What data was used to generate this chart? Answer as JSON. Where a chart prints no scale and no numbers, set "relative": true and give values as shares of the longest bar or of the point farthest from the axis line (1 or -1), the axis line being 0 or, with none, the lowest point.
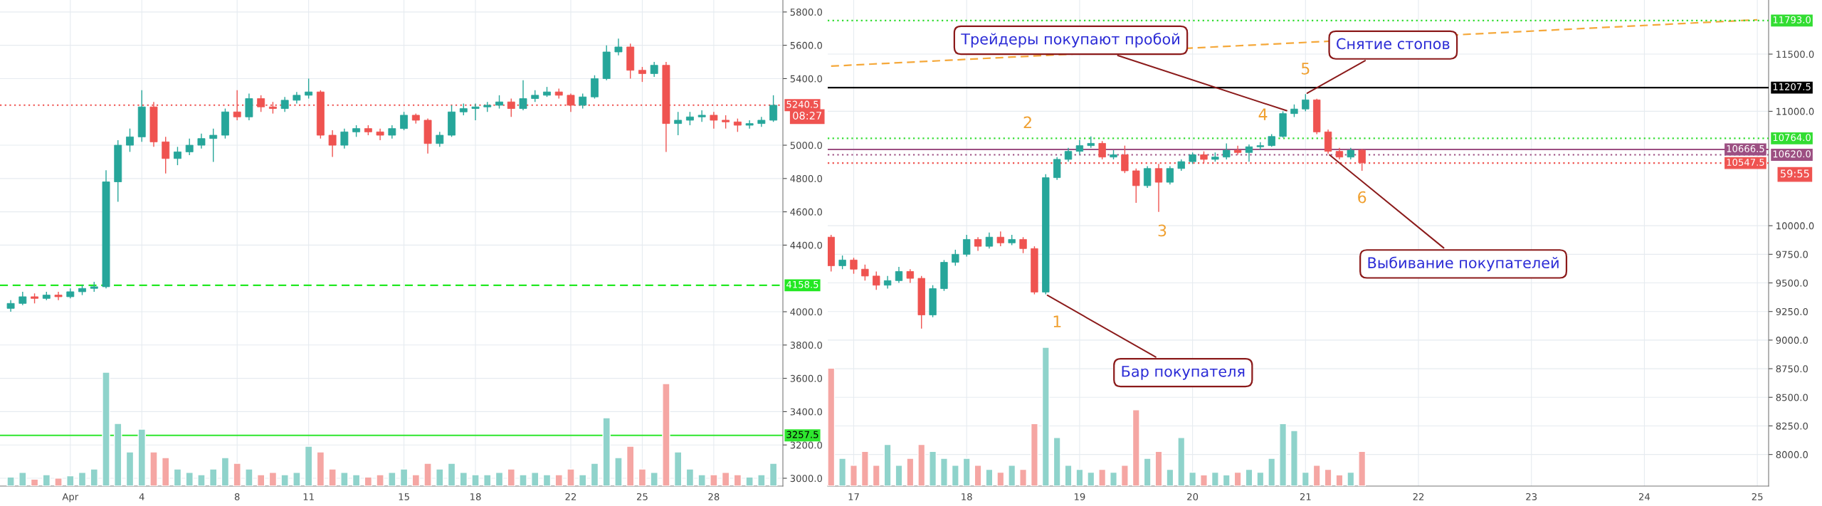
{
  "chart_data": [
    {
      "type": "candlestick",
      "x": [
        -1.5,
        -1,
        -0.5,
        0,
        0.5,
        1,
        1.5,
        2,
        2.5,
        3,
        3.5,
        4,
        4.5,
        5,
        5.5,
        6,
        6.5,
        7,
        7.5,
        8,
        8.5,
        9,
        9.5,
        10,
        10.5,
        11,
        11.5,
        12,
        12.5,
        13,
        13.5,
        14,
        14.5,
        15,
        15.5,
        16,
        16.5,
        17,
        17.5,
        18,
        18.5,
        19,
        19.5,
        20,
        20.5,
        21,
        21.5,
        22,
        22.5,
        23,
        23.5,
        24,
        24.5,
        25,
        25.5,
        26,
        26.5,
        27,
        27.5,
        28,
        28.5,
        29,
        29.5,
        30,
        30.5
      ],
      "ohlc": [
        [
          4020,
          4070,
          4000,
          4050
        ],
        [
          4050,
          4120,
          4040,
          4090
        ],
        [
          4090,
          4110,
          4050,
          4080
        ],
        [
          4080,
          4120,
          4070,
          4100
        ],
        [
          4100,
          4120,
          4070,
          4090
        ],
        [
          4090,
          4140,
          4080,
          4120
        ],
        [
          4120,
          4160,
          4100,
          4140
        ],
        [
          4140,
          4180,
          4120,
          4150
        ],
        [
          4150,
          4850,
          4140,
          4780
        ],
        [
          4780,
          5030,
          4660,
          5000
        ],
        [
          5000,
          5100,
          4960,
          5050
        ],
        [
          5050,
          5330,
          5020,
          5230
        ],
        [
          5230,
          5260,
          4990,
          5020
        ],
        [
          5020,
          5050,
          4830,
          4920
        ],
        [
          4920,
          4990,
          4880,
          4960
        ],
        [
          4960,
          5040,
          4940,
          5000
        ],
        [
          5000,
          5070,
          4980,
          5040
        ],
        [
          5040,
          5100,
          4900,
          5060
        ],
        [
          5060,
          5220,
          5040,
          5200
        ],
        [
          5200,
          5330,
          5150,
          5170
        ],
        [
          5170,
          5310,
          5150,
          5280
        ],
        [
          5280,
          5300,
          5200,
          5230
        ],
        [
          5230,
          5260,
          5190,
          5220
        ],
        [
          5220,
          5290,
          5200,
          5270
        ],
        [
          5270,
          5320,
          5250,
          5300
        ],
        [
          5300,
          5400,
          5280,
          5320
        ],
        [
          5320,
          5330,
          5040,
          5060
        ],
        [
          5060,
          5090,
          4930,
          5000
        ],
        [
          5000,
          5100,
          4980,
          5080
        ],
        [
          5080,
          5120,
          5050,
          5100
        ],
        [
          5100,
          5120,
          5060,
          5080
        ],
        [
          5080,
          5100,
          5030,
          5060
        ],
        [
          5060,
          5120,
          5040,
          5100
        ],
        [
          5100,
          5200,
          5090,
          5180
        ],
        [
          5180,
          5190,
          5130,
          5150
        ],
        [
          5150,
          5160,
          4950,
          5010
        ],
        [
          5010,
          5080,
          4990,
          5060
        ],
        [
          5060,
          5240,
          5050,
          5200
        ],
        [
          5200,
          5250,
          5180,
          5220
        ],
        [
          5220,
          5250,
          5150,
          5230
        ],
        [
          5230,
          5260,
          5200,
          5240
        ],
        [
          5240,
          5300,
          5220,
          5260
        ],
        [
          5260,
          5280,
          5170,
          5220
        ],
        [
          5220,
          5390,
          5210,
          5280
        ],
        [
          5280,
          5330,
          5260,
          5300
        ],
        [
          5300,
          5350,
          5290,
          5320
        ],
        [
          5320,
          5340,
          5280,
          5300
        ],
        [
          5300,
          5310,
          5200,
          5240
        ],
        [
          5240,
          5310,
          5220,
          5290
        ],
        [
          5290,
          5420,
          5280,
          5400
        ],
        [
          5400,
          5600,
          5390,
          5560
        ],
        [
          5560,
          5640,
          5540,
          5590
        ],
        [
          5590,
          5610,
          5400,
          5450
        ],
        [
          5450,
          5470,
          5380,
          5430
        ],
        [
          5430,
          5500,
          5410,
          5480
        ],
        [
          5480,
          5500,
          4960,
          5130
        ],
        [
          5130,
          5200,
          5060,
          5150
        ],
        [
          5150,
          5200,
          5120,
          5170
        ],
        [
          5170,
          5210,
          5140,
          5180
        ],
        [
          5180,
          5200,
          5100,
          5150
        ],
        [
          5150,
          5180,
          5100,
          5140
        ],
        [
          5140,
          5160,
          5080,
          5120
        ],
        [
          5120,
          5150,
          5100,
          5130
        ],
        [
          5130,
          5170,
          5110,
          5150
        ],
        [
          5150,
          5300,
          5140,
          5240
        ]
      ],
      "xlim": [
        -1.95,
        30.9
      ],
      "ylim": [
        2953,
        5872
      ],
      "xticks": [
        {
          "value": 1,
          "label": "Apr"
        },
        4,
        8,
        11,
        15,
        18,
        22,
        25,
        28
      ],
      "yticks": [
        {
          "value": 3000,
          "label": "3000.0"
        },
        {
          "value": 3200,
          "label": "3200.0"
        },
        {
          "value": 3400,
          "label": "3400.0"
        },
        {
          "value": 3600,
          "label": "3600.0"
        },
        {
          "value": 3800,
          "label": "3800.0"
        },
        {
          "value": 4000,
          "label": "4000.0"
        },
        {
          "value": 4400,
          "label": "4400.0"
        },
        {
          "value": 4600,
          "label": "4600.0"
        },
        {
          "value": 4800,
          "label": "4800.0"
        },
        {
          "value": 5000,
          "label": "5000.0"
        },
        {
          "value": 5400,
          "label": "5400.0"
        },
        {
          "value": 5600,
          "label": "5600.0"
        },
        {
          "value": 5800,
          "label": "5800.0"
        }
      ],
      "grid": true,
      "ref_lines": [
        {
          "axis": "y",
          "value": 4158.5,
          "label": "4158.5",
          "color": "#22e822",
          "line_style": "dashed"
        },
        {
          "axis": "y",
          "value": 3257.5,
          "label": "3257.5",
          "color": "#2ee62e",
          "line_style": "solid"
        },
        {
          "axis": "y",
          "value": 5240.5,
          "label": "5240.5",
          "color": "#ef5350",
          "line_style": "dotted"
        }
      ],
      "annotations": [
        "08:27"
      ]
    },
    {
      "type": "bar",
      "relative": true,
      "x": [
        -1.5,
        -1,
        -0.5,
        0,
        0.5,
        1,
        1.5,
        2,
        2.5,
        3,
        3.5,
        4,
        4.5,
        5,
        5.5,
        6,
        6.5,
        7,
        7.5,
        8,
        8.5,
        9,
        9.5,
        10,
        10.5,
        11,
        11.5,
        12,
        12.5,
        13,
        13.5,
        14,
        14.5,
        15,
        15.5,
        16,
        16.5,
        17,
        17.5,
        18,
        18.5,
        19,
        19.5,
        20,
        20.5,
        21,
        21.5,
        22,
        22.5,
        23,
        23.5,
        24,
        24.5,
        25,
        25.5,
        26,
        26.5,
        27,
        27.5,
        28,
        28.5,
        29,
        29.5,
        30,
        30.5
      ],
      "xlim": [
        -1.95,
        30.9
      ],
      "values": [
        0.08,
        0.12,
        0.06,
        0.1,
        0.07,
        0.09,
        0.12,
        0.15,
        1.0,
        0.55,
        0.3,
        0.5,
        0.3,
        0.25,
        0.15,
        0.12,
        0.1,
        0.15,
        0.25,
        0.2,
        0.15,
        0.1,
        0.12,
        0.1,
        0.12,
        0.35,
        0.3,
        0.15,
        0.12,
        0.1,
        0.08,
        0.1,
        0.12,
        0.15,
        0.1,
        0.2,
        0.15,
        0.2,
        0.12,
        0.1,
        0.1,
        0.12,
        0.15,
        0.1,
        0.12,
        0.1,
        0.1,
        0.15,
        0.1,
        0.2,
        0.6,
        0.25,
        0.35,
        0.15,
        0.12,
        0.9,
        0.3,
        0.15,
        0.1,
        0.1,
        0.12,
        0.1,
        0.08,
        0.1,
        0.2
      ],
      "colors": [
        "#8fd3cb",
        "#8fd3cb",
        "#f5a6a3",
        "#8fd3cb",
        "#f5a6a3",
        "#8fd3cb",
        "#8fd3cb",
        "#8fd3cb",
        "#8fd3cb",
        "#8fd3cb",
        "#8fd3cb",
        "#8fd3cb",
        "#f5a6a3",
        "#f5a6a3",
        "#8fd3cb",
        "#8fd3cb",
        "#8fd3cb",
        "#8fd3cb",
        "#8fd3cb",
        "#f5a6a3",
        "#8fd3cb",
        "#f5a6a3",
        "#f5a6a3",
        "#8fd3cb",
        "#8fd3cb",
        "#8fd3cb",
        "#f5a6a3",
        "#f5a6a3",
        "#8fd3cb",
        "#8fd3cb",
        "#f5a6a3",
        "#f5a6a3",
        "#8fd3cb",
        "#8fd3cb",
        "#f5a6a3",
        "#f5a6a3",
        "#8fd3cb",
        "#8fd3cb",
        "#8fd3cb",
        "#8fd3cb",
        "#8fd3cb",
        "#8fd3cb",
        "#f5a6a3",
        "#8fd3cb",
        "#8fd3cb",
        "#8fd3cb",
        "#f5a6a3",
        "#f5a6a3",
        "#8fd3cb",
        "#8fd3cb",
        "#8fd3cb",
        "#8fd3cb",
        "#f5a6a3",
        "#f5a6a3",
        "#8fd3cb",
        "#f5a6a3",
        "#8fd3cb",
        "#8fd3cb",
        "#8fd3cb",
        "#f5a6a3",
        "#f5a6a3",
        "#f5a6a3",
        "#8fd3cb",
        "#8fd3cb",
        "#8fd3cb"
      ]
    },
    {
      "type": "candlestick",
      "x": [
        16.8,
        16.9,
        17.0,
        17.1,
        17.2,
        17.3,
        17.4,
        17.5,
        17.6,
        17.7,
        17.8,
        17.9,
        18.0,
        18.1,
        18.2,
        18.3,
        18.4,
        18.5,
        18.6,
        18.7,
        18.8,
        18.9,
        19.0,
        19.1,
        19.2,
        19.3,
        19.4,
        19.5,
        19.6,
        19.7,
        19.8,
        19.9,
        20.0,
        20.1,
        20.2,
        20.3,
        20.4,
        20.5,
        20.6,
        20.7,
        20.8,
        20.9,
        21.0,
        21.1,
        21.2,
        21.3,
        21.4,
        21.5
      ],
      "ohlc": [
        [
          9900,
          9920,
          9600,
          9650
        ],
        [
          9650,
          9740,
          9620,
          9700
        ],
        [
          9700,
          9720,
          9580,
          9620
        ],
        [
          9620,
          9660,
          9520,
          9560
        ],
        [
          9560,
          9600,
          9440,
          9480
        ],
        [
          9480,
          9560,
          9450,
          9520
        ],
        [
          9520,
          9640,
          9500,
          9600
        ],
        [
          9600,
          9620,
          9500,
          9540
        ],
        [
          9540,
          9560,
          9100,
          9220
        ],
        [
          9220,
          9480,
          9200,
          9450
        ],
        [
          9450,
          9700,
          9430,
          9680
        ],
        [
          9680,
          9790,
          9650,
          9750
        ],
        [
          9750,
          9920,
          9730,
          9880
        ],
        [
          9880,
          9900,
          9780,
          9820
        ],
        [
          9820,
          9940,
          9800,
          9900
        ],
        [
          9900,
          9950,
          9820,
          9850
        ],
        [
          9850,
          9920,
          9830,
          9880
        ],
        [
          9880,
          9900,
          9760,
          9800
        ],
        [
          9800,
          9820,
          9400,
          9420
        ],
        [
          9420,
          10450,
          9400,
          10420
        ],
        [
          10420,
          10600,
          10400,
          10580
        ],
        [
          10580,
          10680,
          10560,
          10650
        ],
        [
          10650,
          10750,
          10620,
          10700
        ],
        [
          10700,
          10780,
          10680,
          10720
        ],
        [
          10720,
          10740,
          10580,
          10600
        ],
        [
          10600,
          10660,
          10580,
          10620
        ],
        [
          10620,
          10700,
          10460,
          10480
        ],
        [
          10480,
          10500,
          10200,
          10350
        ],
        [
          10350,
          10520,
          10330,
          10500
        ],
        [
          10500,
          10540,
          10120,
          10380
        ],
        [
          10380,
          10520,
          10360,
          10500
        ],
        [
          10500,
          10580,
          10480,
          10560
        ],
        [
          10560,
          10640,
          10540,
          10620
        ],
        [
          10620,
          10650,
          10550,
          10580
        ],
        [
          10580,
          10640,
          10560,
          10600
        ],
        [
          10600,
          10720,
          10580,
          10660
        ],
        [
          10660,
          10700,
          10620,
          10640
        ],
        [
          10640,
          10710,
          10560,
          10690
        ],
        [
          10690,
          10730,
          10660,
          10700
        ],
        [
          10700,
          10800,
          10690,
          10780
        ],
        [
          10780,
          11000,
          10770,
          10980
        ],
        [
          10980,
          11060,
          10950,
          11020
        ],
        [
          11020,
          11150,
          11000,
          11100
        ],
        [
          11100,
          11110,
          10800,
          10820
        ],
        [
          10820,
          10840,
          10630,
          10650
        ],
        [
          10650,
          10680,
          10580,
          10600
        ],
        [
          10600,
          10680,
          10580,
          10660
        ],
        [
          10660,
          10670,
          10480,
          10550
        ]
      ],
      "series": [
        {
          "type": "line",
          "x": [
            16.8,
            25.0
          ],
          "values": [
            11395,
            11800
          ],
          "color": "#f5a83a",
          "line_style": "dashed"
        }
      ],
      "xlim": [
        16.77,
        25.1
      ],
      "ylim": [
        7724,
        11973
      ],
      "xticks": [
        17,
        18,
        19,
        20,
        21,
        22,
        23,
        24,
        25
      ],
      "yticks": [
        {
          "value": 8000,
          "label": "8000.0"
        },
        {
          "value": 8250,
          "label": "8250.0"
        },
        {
          "value": 8500,
          "label": "8500.0"
        },
        {
          "value": 8750,
          "label": "8750.0"
        },
        {
          "value": 9000,
          "label": "9000.0"
        },
        {
          "value": 9250,
          "label": "9250.0"
        },
        {
          "value": 9500,
          "label": "9500.0"
        },
        {
          "value": 9750,
          "label": "9750.0"
        },
        {
          "value": 10000,
          "label": "10000.0"
        },
        {
          "value": 11000,
          "label": "11000.0"
        },
        {
          "value": 11500,
          "label": "11500.0"
        }
      ],
      "grid": true,
      "ref_lines": [
        {
          "axis": "y",
          "value": 11793.0,
          "label": "11793.0",
          "color": "#33dd33",
          "line_style": "dotted"
        },
        {
          "axis": "y",
          "value": 11207.5,
          "label": "11207.5",
          "color": "#000000",
          "line_style": "solid"
        },
        {
          "axis": "y",
          "value": 10764.0,
          "label": "10764.0",
          "color": "#33dd33",
          "line_style": "dotted"
        },
        {
          "axis": "y",
          "value": 10666.5,
          "label": "10666.5",
          "color": "#9c4f82",
          "line_style": "solid"
        },
        {
          "axis": "y",
          "value": 10620.0,
          "label": "10620.0",
          "color": "#9c4f82",
          "line_style": "dotted"
        },
        {
          "axis": "y",
          "value": 10547.5,
          "label": "10547.5",
          "color": "#ef5350",
          "line_style": "dotted"
        }
      ],
      "annotations": [
        {
          "text": "Трейдеры покупают пробой",
          "x": 20.85,
          "y": 11000
        },
        {
          "text": "Снятие стопов",
          "x": 21.0,
          "y": 11150
        },
        {
          "text": "Выбивание покупателей",
          "x": 21.2,
          "y": 10630
        },
        {
          "text": "Бар покупателя",
          "x": 18.7,
          "y": 9400
        },
        {
          "text": "1",
          "x": 18.7,
          "y": 9400
        },
        {
          "text": "2",
          "x": 18.9,
          "y": 10680
        },
        {
          "text": "3",
          "x": 19.7,
          "y": 10120
        },
        {
          "text": "4",
          "x": 20.8,
          "y": 10980
        },
        {
          "text": "5",
          "x": 21.0,
          "y": 11150
        },
        {
          "text": "6",
          "x": 21.5,
          "y": 10480
        },
        "59:55"
      ]
    },
    {
      "type": "bar",
      "relative": true,
      "x": [
        16.8,
        16.9,
        17.0,
        17.1,
        17.2,
        17.3,
        17.4,
        17.5,
        17.6,
        17.7,
        17.8,
        17.9,
        18.0,
        18.1,
        18.2,
        18.3,
        18.4,
        18.5,
        18.6,
        18.7,
        18.8,
        18.9,
        19.0,
        19.1,
        19.2,
        19.3,
        19.4,
        19.5,
        19.6,
        19.7,
        19.8,
        19.9,
        20.0,
        20.1,
        20.2,
        20.3,
        20.4,
        20.5,
        20.6,
        20.7,
        20.8,
        20.9,
        21.0,
        21.1,
        21.2,
        21.3,
        21.4,
        21.5
      ],
      "xlim": [
        16.77,
        25.1
      ],
      "values": [
        0.85,
        0.2,
        0.15,
        0.25,
        0.15,
        0.3,
        0.15,
        0.2,
        0.3,
        0.25,
        0.2,
        0.15,
        0.2,
        0.15,
        0.12,
        0.1,
        0.15,
        0.12,
        0.45,
        1.0,
        0.35,
        0.15,
        0.12,
        0.1,
        0.12,
        0.1,
        0.15,
        0.55,
        0.2,
        0.25,
        0.12,
        0.35,
        0.1,
        0.08,
        0.1,
        0.08,
        0.1,
        0.12,
        0.1,
        0.2,
        0.45,
        0.4,
        0.1,
        0.15,
        0.12,
        0.08,
        0.1,
        0.25
      ],
      "colors": [
        "#f5a6a3",
        "#8fd3cb",
        "#f5a6a3",
        "#f5a6a3",
        "#f5a6a3",
        "#8fd3cb",
        "#8fd3cb",
        "#f5a6a3",
        "#f5a6a3",
        "#8fd3cb",
        "#8fd3cb",
        "#8fd3cb",
        "#8fd3cb",
        "#f5a6a3",
        "#8fd3cb",
        "#f5a6a3",
        "#8fd3cb",
        "#f5a6a3",
        "#f5a6a3",
        "#8fd3cb",
        "#8fd3cb",
        "#8fd3cb",
        "#8fd3cb",
        "#8fd3cb",
        "#f5a6a3",
        "#8fd3cb",
        "#f5a6a3",
        "#f5a6a3",
        "#8fd3cb",
        "#f5a6a3",
        "#8fd3cb",
        "#8fd3cb",
        "#8fd3cb",
        "#f5a6a3",
        "#8fd3cb",
        "#8fd3cb",
        "#f5a6a3",
        "#8fd3cb",
        "#8fd3cb",
        "#8fd3cb",
        "#8fd3cb",
        "#8fd3cb",
        "#8fd3cb",
        "#f5a6a3",
        "#f5a6a3",
        "#f5a6a3",
        "#8fd3cb",
        "#f5a6a3"
      ]
    }
  ]
}
